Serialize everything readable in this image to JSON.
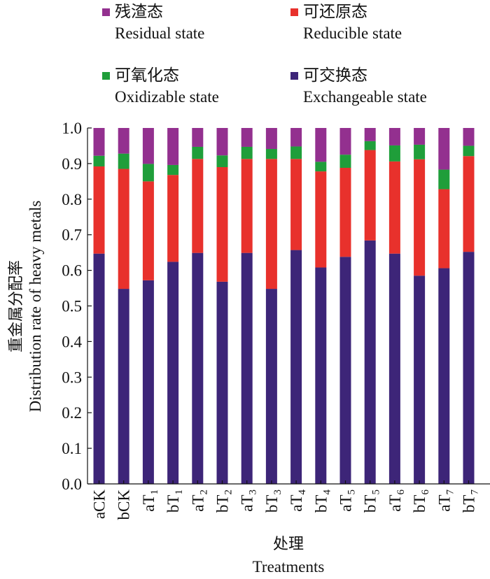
{
  "legend": [
    {
      "cn": "残渣态",
      "en": "Residual state",
      "color": "#93308f"
    },
    {
      "cn": "可还原态",
      "en": "Reducible state",
      "color": "#e8312c"
    },
    {
      "cn": "可氧化态",
      "en": "Oxidizable state",
      "color": "#1f9e3a"
    },
    {
      "cn": "可交换态",
      "en": "Exchangeable state",
      "color": "#3d2578"
    }
  ],
  "chart_data": {
    "type": "bar",
    "stacked": true,
    "xlabel_cn": "处理",
    "xlabel_en": "Treatments",
    "ylabel_cn": "重金属分配率",
    "ylabel_en": "Distribution rate of heavy metals",
    "ylim": [
      0,
      1.0
    ],
    "yticks": [
      "0.0",
      "0.1",
      "0.2",
      "0.3",
      "0.4",
      "0.5",
      "0.6",
      "0.7",
      "0.8",
      "0.9",
      "1.0"
    ],
    "categories": [
      {
        "main": "aCK",
        "sub": ""
      },
      {
        "main": "bCK",
        "sub": ""
      },
      {
        "main": "aT",
        "sub": "1"
      },
      {
        "main": "bT",
        "sub": "1"
      },
      {
        "main": "aT",
        "sub": "2"
      },
      {
        "main": "bT",
        "sub": "2"
      },
      {
        "main": "aT",
        "sub": "3"
      },
      {
        "main": "bT",
        "sub": "3"
      },
      {
        "main": "aT",
        "sub": "4"
      },
      {
        "main": "bT",
        "sub": "4"
      },
      {
        "main": "aT",
        "sub": "5"
      },
      {
        "main": "bT",
        "sub": "5"
      },
      {
        "main": "aT",
        "sub": "6"
      },
      {
        "main": "bT",
        "sub": "6"
      },
      {
        "main": "aT",
        "sub": "7"
      },
      {
        "main": "bT",
        "sub": "7"
      }
    ],
    "series": [
      {
        "name": "Exchangeable state",
        "color": "#3d2578",
        "values": [
          0.647,
          0.548,
          0.572,
          0.624,
          0.649,
          0.568,
          0.649,
          0.548,
          0.657,
          0.608,
          0.638,
          0.684,
          0.647,
          0.585,
          0.606,
          0.652
        ]
      },
      {
        "name": "Reducible state",
        "color": "#e8312c",
        "values": [
          0.245,
          0.337,
          0.278,
          0.244,
          0.264,
          0.322,
          0.264,
          0.365,
          0.256,
          0.27,
          0.25,
          0.254,
          0.259,
          0.327,
          0.222,
          0.269
        ]
      },
      {
        "name": "Oxidizable state",
        "color": "#1f9e3a",
        "values": [
          0.03,
          0.043,
          0.049,
          0.028,
          0.034,
          0.033,
          0.034,
          0.028,
          0.035,
          0.027,
          0.037,
          0.025,
          0.045,
          0.041,
          0.055,
          0.029
        ]
      },
      {
        "name": "Residual state",
        "color": "#93308f",
        "values": [
          0.078,
          0.072,
          0.101,
          0.104,
          0.053,
          0.077,
          0.053,
          0.059,
          0.052,
          0.095,
          0.075,
          0.037,
          0.049,
          0.047,
          0.117,
          0.05
        ]
      }
    ]
  }
}
